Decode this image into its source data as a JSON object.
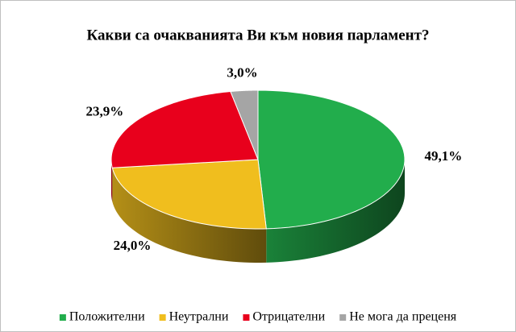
{
  "chart_data": {
    "type": "pie3d",
    "title": "Какви са очакванията  Ви към новия парламент?",
    "categories": [
      "Положителни",
      "Неутрални",
      "Отрицателни",
      "Не мога да преценя"
    ],
    "values": [
      49.1,
      24.0,
      23.9,
      3.0
    ],
    "value_labels": [
      "49,1%",
      "24,0%",
      "23,9%",
      "3,0%"
    ],
    "colors": [
      "#22ad4c",
      "#f0be1e",
      "#e8001c",
      "#a5a5a5"
    ],
    "legend": "bottom"
  }
}
